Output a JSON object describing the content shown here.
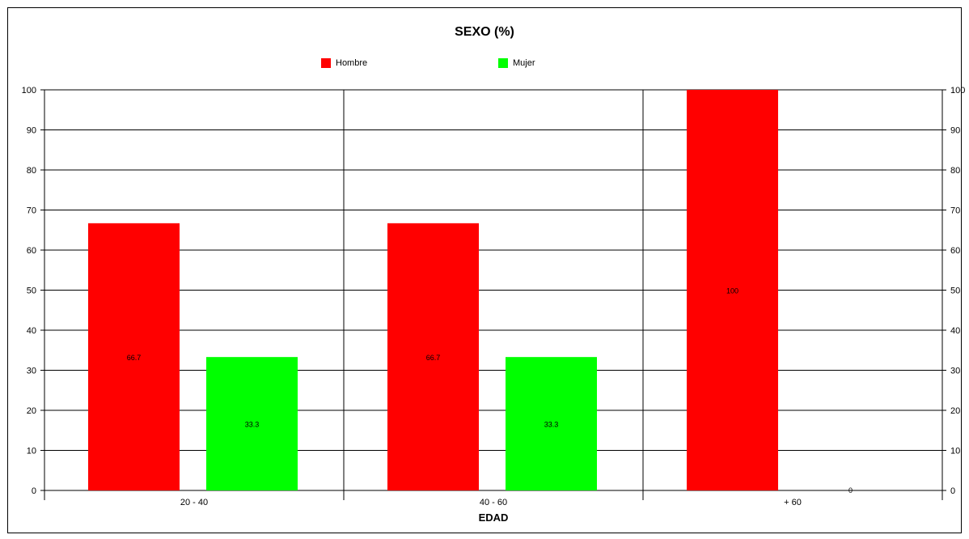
{
  "chart_data": {
    "type": "bar",
    "title": "SEXO (%)",
    "xlabel": "EDAD",
    "ylabel": "",
    "categories": [
      "20 - 40",
      "40 - 60",
      "+ 60"
    ],
    "series": [
      {
        "name": "Hombre",
        "values": [
          66.7,
          66.7,
          100
        ],
        "labels": [
          "66.7",
          "66.7",
          "100"
        ],
        "color": "#ff0000"
      },
      {
        "name": "Mujer",
        "values": [
          33.3,
          33.3,
          0
        ],
        "labels": [
          "33.3",
          "33.3",
          "0"
        ],
        "color": "#00ff00"
      }
    ],
    "ylim": [
      0,
      100
    ],
    "yticks": [
      "0",
      "10",
      "20",
      "30",
      "40",
      "50",
      "60",
      "70",
      "80",
      "90",
      "100"
    ],
    "grid": true,
    "legend_position": "top-center",
    "secondary_y_axis": true
  }
}
